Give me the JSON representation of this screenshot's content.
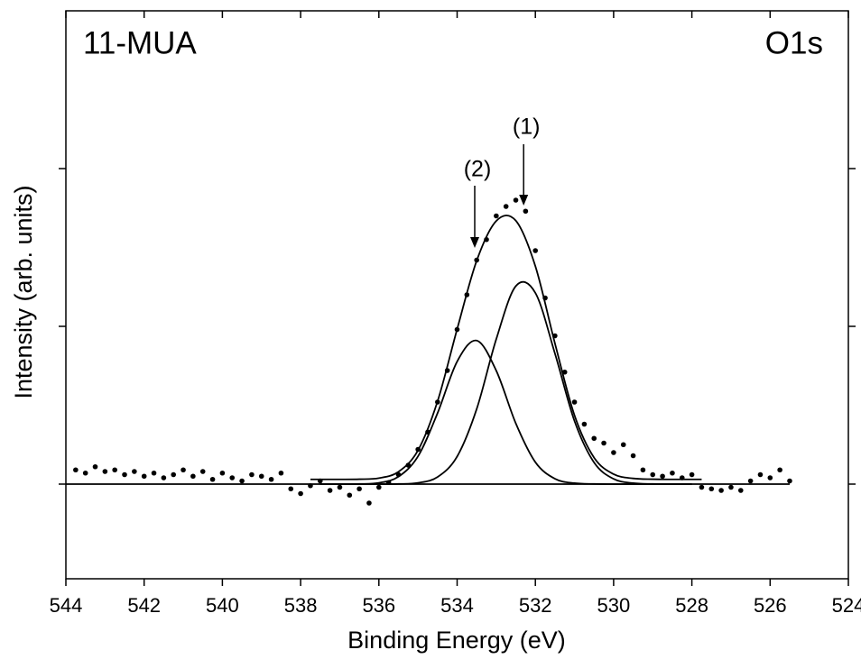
{
  "chart_data": {
    "type": "scatter",
    "title": "11-MUA",
    "subtitle": "O1s",
    "x_label": "Binding Energy (eV)",
    "y_label": "Intensity (arb. units)",
    "xlim": [
      544,
      524
    ],
    "xticks": [
      544,
      542,
      540,
      538,
      536,
      534,
      532,
      530,
      528,
      526,
      524
    ],
    "ylim": [
      -0.6,
      3
    ],
    "yticks": [
      0,
      1,
      2
    ],
    "annotations": [
      {
        "text": "(1)",
        "x": 532.3
      },
      {
        "text": "(2)",
        "x": 533.55
      }
    ],
    "points": {
      "color": "#000000",
      "x": [
        543.75,
        543.5,
        543.25,
        543,
        542.75,
        542.5,
        542.25,
        542,
        541.75,
        541.5,
        541.25,
        541,
        540.75,
        540.5,
        540.25,
        540,
        539.75,
        539.5,
        539.25,
        539,
        538.75,
        538.5,
        538.25,
        538,
        537.75,
        537.5,
        537.25,
        537,
        536.75,
        536.5,
        536.25,
        536,
        535.75,
        535.5,
        535.25,
        535,
        534.75,
        534.5,
        534.25,
        534,
        533.75,
        533.5,
        533.25,
        533,
        532.75,
        532.5,
        532.25,
        532,
        531.75,
        531.5,
        531.25,
        531,
        530.75,
        530.5,
        530.25,
        530,
        529.75,
        529.5,
        529.25,
        529,
        528.75,
        528.5,
        528.25,
        528,
        527.75,
        527.5,
        527.25,
        527,
        526.75,
        526.5,
        526.25,
        526,
        525.75,
        525.5
      ],
      "values": [
        0.09,
        0.07,
        0.11,
        0.08,
        0.09,
        0.06,
        0.08,
        0.05,
        0.07,
        0.04,
        0.06,
        0.09,
        0.05,
        0.08,
        0.03,
        0.07,
        0.04,
        0.02,
        0.06,
        0.05,
        0.03,
        0.07,
        -0.03,
        -0.06,
        -0.01,
        0.02,
        -0.04,
        -0.02,
        -0.07,
        -0.03,
        -0.12,
        -0.02,
        0.01,
        0.06,
        0.12,
        0.22,
        0.33,
        0.52,
        0.72,
        0.98,
        1.2,
        1.42,
        1.55,
        1.7,
        1.76,
        1.8,
        1.73,
        1.48,
        1.18,
        0.94,
        0.71,
        0.52,
        0.38,
        0.29,
        0.26,
        0.2,
        0.25,
        0.18,
        0.09,
        0.06,
        0.05,
        0.07,
        0.04,
        0.06,
        -0.02,
        -0.03,
        -0.04,
        -0.02,
        -0.04,
        0.02,
        0.06,
        0.04,
        0.09,
        0.02
      ]
    },
    "curves": [
      {
        "color": "#000000",
        "x": [
          544,
          525.5
        ],
        "values": [
          0,
          0
        ]
      },
      {
        "color": "#000000",
        "x": [
          537.75,
          537.5,
          537,
          536.5,
          536,
          535.5,
          535,
          534.5,
          534,
          533.5,
          533,
          532.5,
          532,
          531.5,
          531,
          530.5,
          530,
          529.5,
          529,
          528.5,
          528,
          527.75
        ],
        "values": [
          0.03,
          0.03,
          0.03,
          0.031,
          0.038,
          0.078,
          0.214,
          0.525,
          0.982,
          1.416,
          1.668,
          1.67,
          1.381,
          0.892,
          0.436,
          0.168,
          0.063,
          0.036,
          0.031,
          0.03,
          0.03,
          0.03
        ]
      },
      {
        "color": "#000000",
        "x": [
          537.5,
          537,
          536.5,
          536,
          535.5,
          535,
          534.5,
          534,
          533.5,
          533,
          532.5,
          532,
          531.5,
          531,
          530.5,
          530,
          529.5,
          529,
          528.5,
          528
        ],
        "values": [
          0,
          0,
          0,
          0,
          0.001,
          0.008,
          0.045,
          0.175,
          0.476,
          0.919,
          1.255,
          1.212,
          0.828,
          0.4,
          0.137,
          0.033,
          0.006,
          0.001,
          0,
          0
        ]
      },
      {
        "color": "#000000",
        "x": [
          537.5,
          537,
          536.5,
          536,
          535.5,
          535,
          534.5,
          534,
          533.5,
          533,
          532.5,
          532,
          531.5,
          531,
          530.5,
          530,
          529.5,
          529,
          528.5,
          528
        ],
        "values": [
          0,
          0,
          0.001,
          0.008,
          0.047,
          0.176,
          0.45,
          0.777,
          0.91,
          0.719,
          0.385,
          0.139,
          0.034,
          0.006,
          0.001,
          0,
          0,
          0,
          0,
          0
        ]
      }
    ]
  }
}
